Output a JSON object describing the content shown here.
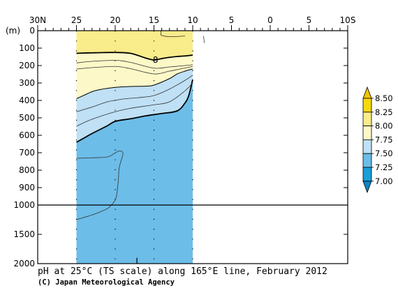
{
  "figure": {
    "title": "pH at 25°C (TS scale) along 165°E line, February 2012",
    "credit": "(C) Japan Meteorological Agency",
    "depth_unit": "(m)"
  },
  "chart_data": {
    "type": "heatmap",
    "title": "pH at 25°C (TS scale) along 165°E line, February 2012",
    "x_axis": {
      "tick_labels": [
        "30N",
        "25",
        "20",
        "15",
        "10",
        "5",
        "0",
        "5",
        "10S"
      ],
      "tick_values": [
        30,
        25,
        20,
        15,
        10,
        5,
        0,
        -5,
        -10
      ],
      "range": [
        30,
        -10
      ]
    },
    "y_axis": {
      "label": "(m)",
      "upper_tick_labels": [
        "0",
        "100",
        "200",
        "300",
        "400",
        "500",
        "600",
        "700",
        "800",
        "900",
        "1000"
      ],
      "upper_tick_values": [
        0,
        100,
        200,
        300,
        400,
        500,
        600,
        700,
        800,
        900,
        1000
      ],
      "lower_tick_labels": [
        "1500",
        "2000"
      ],
      "lower_tick_values": [
        1500,
        2000
      ],
      "range": [
        0,
        2000
      ]
    },
    "data_extent_lat": [
      25,
      10
    ],
    "station_lats": [
      25,
      20,
      15,
      10
    ],
    "color_levels": [
      7.0,
      7.25,
      7.5,
      7.75,
      8.0,
      8.25,
      8.5
    ],
    "colorbar_labels": [
      "8.50",
      "8.25",
      "8.00",
      "7.75",
      "7.50",
      "7.25",
      "7.00"
    ],
    "level_colors": {
      "7.25-7.50": "#6cbde8",
      "7.50-7.75": "#bfe0f5",
      "7.75-8.00": "#fdf8c8",
      "8.00-8.25": "#f9ec8a",
      "8.25-8.50": "#f5d90c"
    },
    "contour_labels": [
      "8"
    ],
    "layer_boundaries": [
      {
        "level": 8.0,
        "thick": true,
        "lat": [
          25,
          24,
          23,
          22,
          20,
          18,
          16,
          15,
          14,
          13,
          12,
          11,
          10
        ],
        "depth": [
          130,
          128,
          127,
          126,
          125,
          130,
          158,
          168,
          160,
          153,
          148,
          145,
          140
        ]
      },
      {
        "level": 7.75,
        "thick": false,
        "lat": [
          25,
          24,
          23,
          22,
          20,
          18,
          16,
          15,
          13,
          12,
          11,
          10.5,
          10
        ],
        "depth": [
          390,
          370,
          350,
          338,
          325,
          320,
          318,
          312,
          275,
          248,
          232,
          225,
          220
        ]
      },
      {
        "level": 7.5,
        "thick": true,
        "lat": [
          25,
          24,
          23,
          21,
          20,
          18,
          16,
          14,
          12,
          11,
          10.5,
          10
        ],
        "depth": [
          640,
          615,
          590,
          545,
          520,
          505,
          488,
          475,
          460,
          415,
          370,
          280
        ]
      }
    ],
    "interior_contours": [
      {
        "lat": [
          25,
          23,
          20,
          18,
          15,
          13,
          11,
          10
        ],
        "depth": [
          185,
          176,
          170,
          182,
          215,
          208,
          200,
          195
        ]
      },
      {
        "lat": [
          25,
          23,
          20,
          18,
          15,
          13,
          11,
          10
        ],
        "depth": [
          220,
          212,
          205,
          218,
          248,
          232,
          214,
          205
        ]
      },
      {
        "lat": [
          25,
          23,
          21,
          19,
          17,
          15,
          13,
          11,
          10
        ],
        "depth": [
          465,
          438,
          408,
          392,
          384,
          372,
          335,
          285,
          255
        ]
      },
      {
        "lat": [
          25,
          23,
          20,
          18,
          15,
          13,
          11,
          10
        ],
        "depth": [
          548,
          508,
          465,
          445,
          425,
          408,
          345,
          300
        ]
      },
      {
        "lat": [
          25,
          23,
          21,
          20,
          19.5,
          19,
          19.2,
          19.5,
          19.6,
          19.9,
          20.5,
          21,
          22,
          23,
          25
        ],
        "depth": [
          732,
          729,
          724,
          701,
          690,
          700,
          740,
          790,
          860,
          960,
          1000,
          1060,
          1120,
          1170,
          1250
        ]
      },
      {
        "lat": [
          8.5,
          8.6
        ],
        "depth": [
          70,
          30
        ]
      }
    ]
  }
}
